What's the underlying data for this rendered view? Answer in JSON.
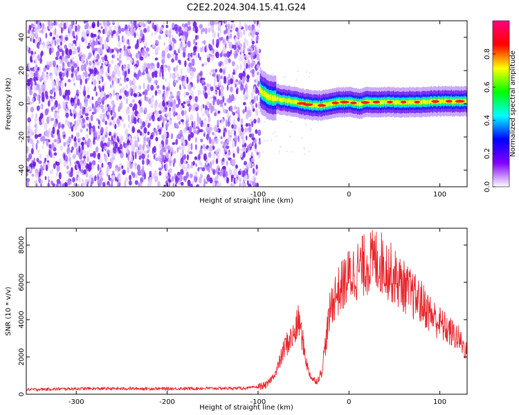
{
  "title": "C2E2.2024.304.15.41.G24",
  "chart_data": [
    {
      "type": "heatmap",
      "xlabel": "Height of straight line (km)",
      "ylabel": "Frequency (Hz)",
      "xlim": [
        -355,
        130
      ],
      "ylim": [
        -50,
        50
      ],
      "xticks": [
        -300,
        -200,
        -100,
        0,
        100
      ],
      "yticks": [
        -40,
        -20,
        0,
        20,
        40
      ],
      "noise_region_x": [
        -355,
        -98
      ],
      "signal_trace": {
        "x": [
          -98,
          -90,
          -80,
          -70,
          -60,
          -50,
          -40,
          -30,
          -20,
          -10,
          0,
          10,
          20,
          30,
          40,
          60,
          80,
          100,
          130
        ],
        "y": [
          8,
          4,
          3,
          2,
          1,
          0,
          -1,
          -1,
          0,
          1,
          1,
          0,
          1,
          1,
          1,
          1,
          1,
          1.5,
          1.5
        ]
      },
      "colorbar": {
        "label": "Normalized spectral amplitude",
        "range": [
          0,
          1
        ],
        "ticks": [
          0.0,
          0.2,
          0.4,
          0.6,
          0.8
        ],
        "colors": [
          "#ffffff",
          "#8000ff",
          "#0000ff",
          "#00ffff",
          "#00ff00",
          "#ffff00",
          "#ff0000",
          "#ff0080"
        ]
      },
      "grid": false
    },
    {
      "type": "line",
      "xlabel": "Height of straight line (km)",
      "ylabel": "SNR (10 * v/v)",
      "xlim": [
        -355,
        130
      ],
      "ylim": [
        0,
        8900
      ],
      "xticks": [
        -300,
        -200,
        -100,
        0,
        100
      ],
      "yticks": [
        0,
        2000,
        4000,
        6000,
        8000
      ],
      "color": "#e8242b",
      "grid": false,
      "series": [
        {
          "x": [
            -355,
            -300,
            -200,
            -110,
            -100,
            -90,
            -80,
            -70,
            -60,
            -55,
            -50,
            -45,
            -40,
            -35,
            -30,
            -25,
            -20,
            -15,
            -10,
            -5,
            0,
            10,
            20,
            30,
            40,
            50,
            60,
            70,
            80,
            90,
            100,
            110,
            120,
            130
          ],
          "y": [
            250,
            300,
            300,
            330,
            400,
            500,
            1200,
            2600,
            3200,
            4000,
            2600,
            1300,
            800,
            700,
            1200,
            3000,
            4700,
            5300,
            5600,
            6000,
            6300,
            6700,
            7000,
            7200,
            6900,
            6300,
            5800,
            5300,
            4900,
            4300,
            3800,
            3400,
            3000,
            2300
          ]
        }
      ]
    }
  ]
}
